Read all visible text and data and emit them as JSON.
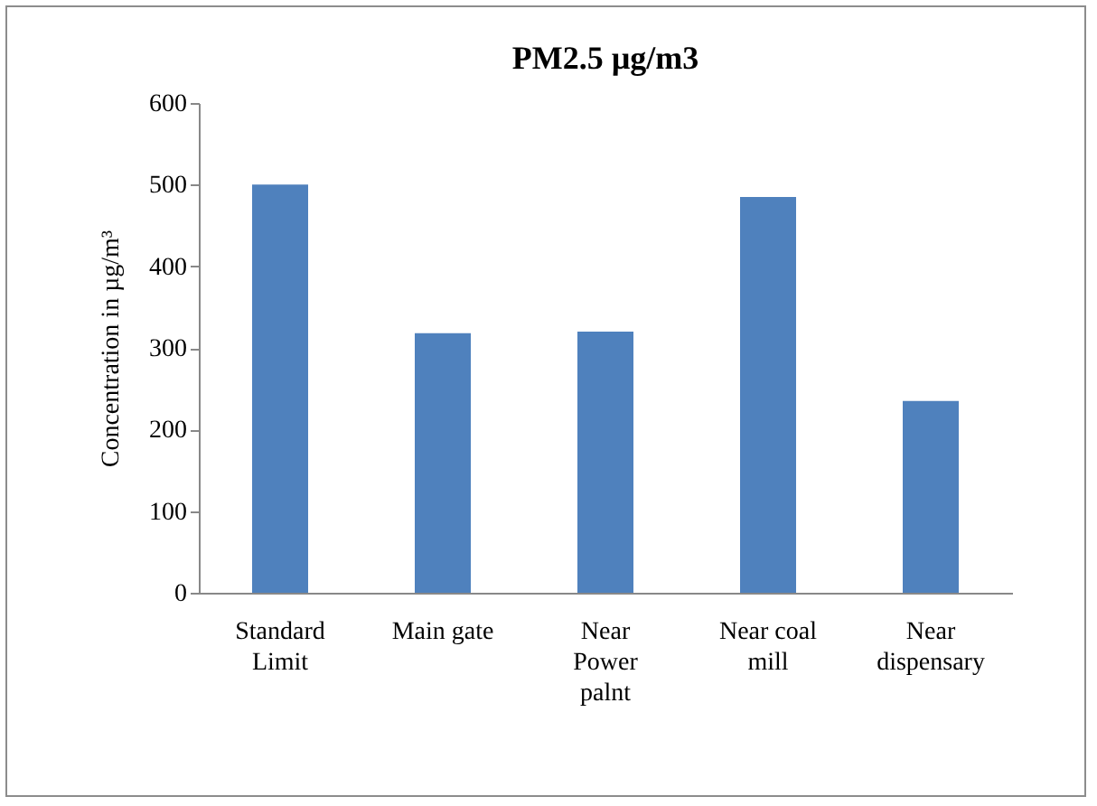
{
  "chart_data": {
    "type": "bar",
    "title": "PM2.5 µg/m3",
    "ylabel": "Concentration in µg/m³",
    "categories": [
      "Standard Limit",
      "Main gate",
      "Near Power palnt",
      "Near coal mill",
      "Near dispensary"
    ],
    "values": [
      500,
      318,
      320,
      485,
      235
    ],
    "color": "#4f81bd",
    "ylim": [
      0,
      600
    ],
    "yticks": [
      0,
      100,
      200,
      300,
      400,
      500,
      600
    ],
    "grid": false
  }
}
